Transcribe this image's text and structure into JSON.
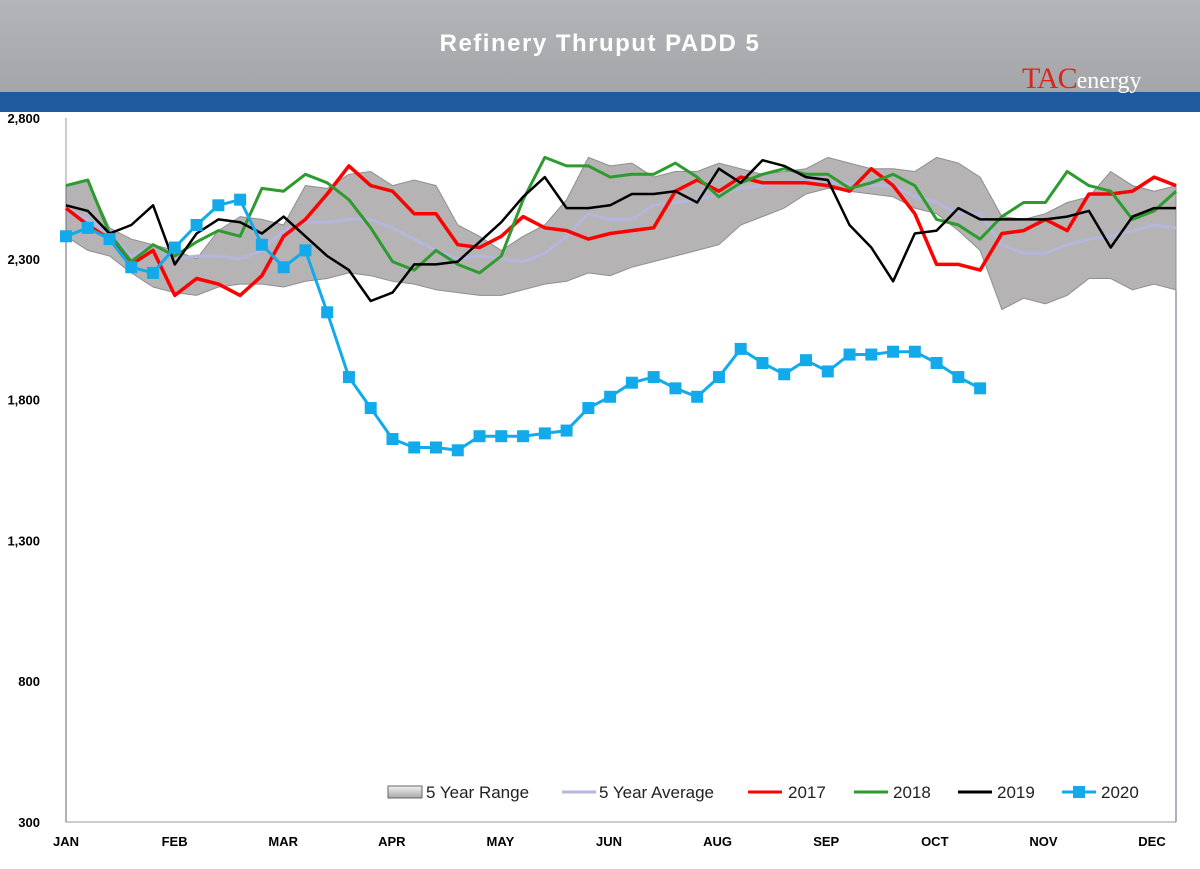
{
  "chart_data": {
    "type": "line",
    "title": "Refinery Thruput PADD 5",
    "ylim": [
      300,
      2800
    ],
    "yticks": [
      "2,800",
      "2,300",
      "1,800",
      "1,300",
      "800",
      "300"
    ],
    "ytick_values": [
      2800,
      2300,
      1800,
      1300,
      800,
      300
    ],
    "months": [
      "JAN",
      "FEB",
      "MAR",
      "APR",
      "MAY",
      "JUN",
      "AUG",
      "SEP",
      "OCT",
      "NOV",
      "DEC"
    ],
    "xlim": [
      1,
      52
    ],
    "legend": [
      "5 Year Range",
      "5 Year Average",
      "2017",
      "2018",
      "2019",
      "2020"
    ],
    "legend_position": "bottom-right",
    "colors": {
      "range": "#a8a6a6",
      "average": "#b6b5dd",
      "2017": "#ff0000",
      "2018": "#2e9b2e",
      "2019": "#000000",
      "2020": "#12aaea"
    },
    "range": {
      "x": [
        1,
        2,
        3,
        4,
        5,
        6,
        7,
        8,
        9,
        10,
        11,
        12,
        13,
        14,
        15,
        16,
        17,
        18,
        19,
        20,
        21,
        22,
        23,
        24,
        25,
        26,
        27,
        28,
        29,
        30,
        31,
        32,
        33,
        34,
        35,
        36,
        37,
        38,
        39,
        40,
        41,
        42,
        43,
        44,
        45,
        46,
        47,
        48,
        49,
        50,
        51,
        52
      ],
      "high": [
        2560,
        2580,
        2410,
        2370,
        2350,
        2330,
        2300,
        2400,
        2450,
        2440,
        2420,
        2560,
        2550,
        2600,
        2610,
        2560,
        2580,
        2560,
        2420,
        2380,
        2330,
        2380,
        2420,
        2510,
        2660,
        2630,
        2640,
        2590,
        2610,
        2610,
        2640,
        2620,
        2600,
        2610,
        2620,
        2660,
        2640,
        2620,
        2620,
        2610,
        2660,
        2640,
        2590,
        2450,
        2440,
        2460,
        2500,
        2520,
        2610,
        2560,
        2540,
        2560
      ],
      "low": [
        2380,
        2330,
        2310,
        2250,
        2200,
        2180,
        2170,
        2200,
        2210,
        2210,
        2200,
        2220,
        2230,
        2250,
        2240,
        2220,
        2210,
        2190,
        2180,
        2170,
        2170,
        2190,
        2210,
        2220,
        2250,
        2240,
        2270,
        2290,
        2310,
        2330,
        2350,
        2420,
        2450,
        2480,
        2530,
        2550,
        2540,
        2530,
        2520,
        2480,
        2460,
        2400,
        2330,
        2120,
        2160,
        2140,
        2170,
        2230,
        2230,
        2190,
        2210,
        2190
      ]
    },
    "series": [
      {
        "name": "5 Year Average",
        "x": [
          1,
          2,
          3,
          4,
          5,
          6,
          7,
          8,
          9,
          10,
          11,
          12,
          13,
          14,
          15,
          16,
          17,
          18,
          19,
          20,
          21,
          22,
          23,
          24,
          25,
          26,
          27,
          28,
          29,
          30,
          31,
          32,
          33,
          34,
          35,
          36,
          37,
          38,
          39,
          40,
          41,
          42,
          43,
          44,
          45,
          46,
          47,
          48,
          49,
          50,
          51,
          52
        ],
        "values": [
          2480,
          2440,
          2390,
          2310,
          2350,
          2300,
          2310,
          2310,
          2300,
          2330,
          2400,
          2430,
          2430,
          2440,
          2440,
          2410,
          2370,
          2330,
          2300,
          2310,
          2300,
          2290,
          2320,
          2380,
          2460,
          2440,
          2440,
          2490,
          2500,
          2510,
          2530,
          2550,
          2560,
          2570,
          2580,
          2570,
          2570,
          2560,
          2560,
          2520,
          2500,
          2460,
          2460,
          2350,
          2320,
          2320,
          2350,
          2370,
          2380,
          2400,
          2420,
          2410
        ]
      },
      {
        "name": "2017",
        "x": [
          1,
          2,
          3,
          4,
          5,
          6,
          7,
          8,
          9,
          10,
          11,
          12,
          13,
          14,
          15,
          16,
          17,
          18,
          19,
          20,
          21,
          22,
          23,
          24,
          25,
          26,
          27,
          28,
          29,
          30,
          31,
          32,
          33,
          34,
          35,
          36,
          37,
          38,
          39,
          40,
          41,
          42,
          43,
          44,
          45,
          46,
          47,
          48,
          49,
          50,
          51,
          52
        ],
        "values": [
          2480,
          2420,
          2370,
          2280,
          2330,
          2170,
          2230,
          2210,
          2170,
          2240,
          2380,
          2440,
          2530,
          2630,
          2560,
          2540,
          2460,
          2460,
          2350,
          2340,
          2380,
          2450,
          2410,
          2400,
          2370,
          2390,
          2400,
          2410,
          2540,
          2580,
          2540,
          2590,
          2570,
          2570,
          2570,
          2560,
          2540,
          2620,
          2560,
          2460,
          2280,
          2280,
          2260,
          2390,
          2400,
          2440,
          2400,
          2530,
          2530,
          2540,
          2590,
          2560
        ]
      },
      {
        "name": "2018",
        "x": [
          1,
          2,
          3,
          4,
          5,
          6,
          7,
          8,
          9,
          10,
          11,
          12,
          13,
          14,
          15,
          16,
          17,
          18,
          19,
          20,
          21,
          22,
          23,
          24,
          25,
          26,
          27,
          28,
          29,
          30,
          31,
          32,
          33,
          34,
          35,
          36,
          37,
          38,
          39,
          40,
          41,
          42,
          43,
          44,
          45,
          46,
          47,
          48,
          49,
          50,
          51,
          52
        ],
        "values": [
          2560,
          2580,
          2390,
          2290,
          2350,
          2310,
          2360,
          2400,
          2380,
          2550,
          2540,
          2600,
          2570,
          2510,
          2410,
          2290,
          2260,
          2330,
          2280,
          2250,
          2310,
          2510,
          2660,
          2630,
          2630,
          2590,
          2600,
          2600,
          2640,
          2590,
          2520,
          2570,
          2600,
          2620,
          2600,
          2600,
          2550,
          2570,
          2600,
          2560,
          2440,
          2420,
          2370,
          2450,
          2500,
          2500,
          2610,
          2560,
          2540,
          2440,
          2470,
          2540
        ]
      },
      {
        "name": "2019",
        "x": [
          1,
          2,
          3,
          4,
          5,
          6,
          7,
          8,
          9,
          10,
          11,
          12,
          13,
          14,
          15,
          16,
          17,
          18,
          19,
          20,
          21,
          22,
          23,
          24,
          25,
          26,
          27,
          28,
          29,
          30,
          31,
          32,
          33,
          34,
          35,
          36,
          37,
          38,
          39,
          40,
          41,
          42,
          43,
          44,
          45,
          46,
          47,
          48,
          49,
          50,
          51,
          52
        ],
        "values": [
          2490,
          2470,
          2390,
          2420,
          2490,
          2280,
          2390,
          2440,
          2430,
          2390,
          2450,
          2380,
          2310,
          2260,
          2150,
          2180,
          2280,
          2280,
          2290,
          2360,
          2430,
          2520,
          2590,
          2480,
          2480,
          2490,
          2530,
          2530,
          2540,
          2500,
          2620,
          2570,
          2650,
          2630,
          2590,
          2580,
          2420,
          2340,
          2220,
          2390,
          2400,
          2480,
          2440,
          2440,
          2440,
          2440,
          2450,
          2470,
          2340,
          2450,
          2480,
          2480
        ]
      },
      {
        "name": "2020",
        "x": [
          1,
          2,
          3,
          4,
          5,
          6,
          7,
          8,
          9,
          10,
          11,
          12,
          13,
          14,
          15,
          16,
          17,
          18,
          19,
          20,
          21,
          22,
          23,
          24,
          25,
          26,
          27,
          28,
          29,
          30,
          31,
          32,
          33,
          34,
          35,
          36,
          37,
          38,
          39,
          40,
          41,
          42,
          43
        ],
        "values": [
          2380,
          2410,
          2370,
          2270,
          2250,
          2340,
          2420,
          2490,
          2510,
          2350,
          2270,
          2330,
          2110,
          1880,
          1770,
          1660,
          1630,
          1630,
          1620,
          1670,
          1670,
          1670,
          1680,
          1690,
          1770,
          1810,
          1860,
          1880,
          1840,
          1810,
          1880,
          1980,
          1930,
          1890,
          1940,
          1900,
          1960,
          1960,
          1970,
          1970,
          1930,
          1880,
          1840
        ]
      }
    ]
  }
}
